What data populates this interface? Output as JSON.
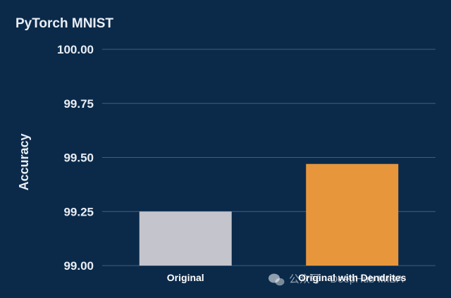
{
  "chart_data": {
    "type": "bar",
    "title": "PyTorch MNIST",
    "xlabel": "",
    "ylabel": "Accuracy",
    "categories": [
      "Original",
      "Original with Dendrites"
    ],
    "values": [
      99.25,
      99.47
    ],
    "ylim": [
      99.0,
      100.0
    ],
    "yticks": [
      "99.00",
      "99.25",
      "99.50",
      "99.75",
      "100.00"
    ],
    "grid": true,
    "legend": "none"
  },
  "colors": {
    "background": "#0b2a4a",
    "bars": [
      "#c4c4cc",
      "#e8963c"
    ],
    "gridline": "#3e5f80",
    "text": "#e9eef5"
  },
  "watermark": {
    "text": "公众号 · DeepHub IMBA",
    "icon": "wechat-icon"
  }
}
